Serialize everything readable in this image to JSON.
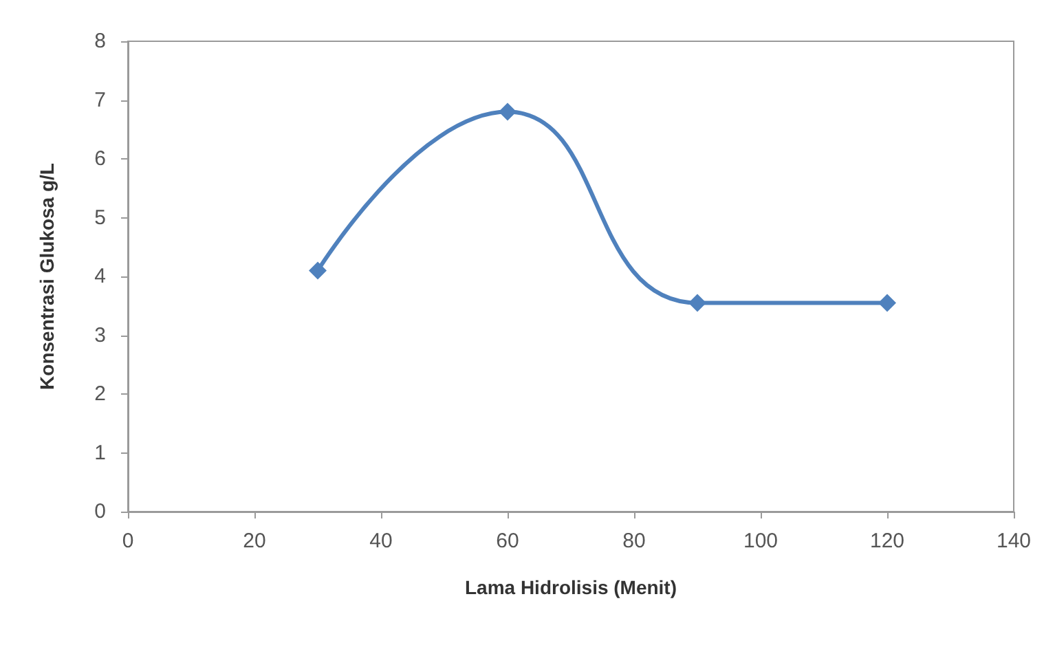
{
  "chart_data": {
    "type": "line",
    "xlabel": "Lama Hidrolisis (Menit)",
    "ylabel": "Konsentrasi Glukosa g/L",
    "x": [
      30,
      60,
      90,
      120
    ],
    "series": [
      {
        "color": "#4f81bd",
        "values": [
          4.1,
          6.8,
          3.55,
          3.55
        ]
      }
    ],
    "xlim": [
      0,
      140
    ],
    "xticks": [
      0,
      20,
      40,
      60,
      80,
      100,
      120,
      140
    ],
    "ylim": [
      0,
      8
    ],
    "yticks": [
      0,
      1,
      2,
      3,
      4,
      5,
      6,
      7,
      8
    ],
    "grid": false,
    "marker": "diamond",
    "line_style": "solid"
  }
}
